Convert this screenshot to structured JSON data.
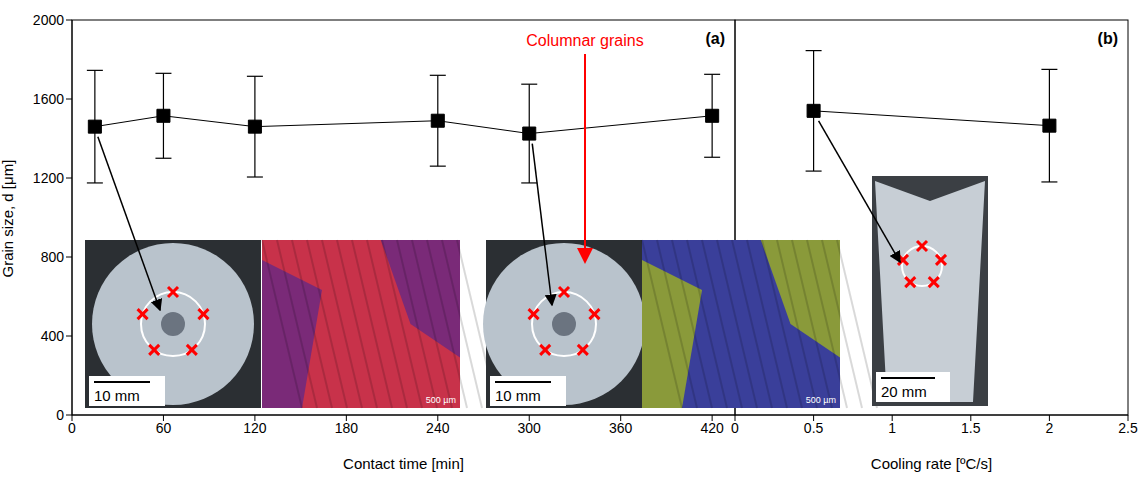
{
  "chart_data": [
    {
      "type": "line",
      "title": "(a)",
      "x_label": "Contact time [min]",
      "y_label": "Grain size, d [μm]",
      "x": [
        15,
        60,
        120,
        240,
        300,
        420
      ],
      "values": [
        1460,
        1515,
        1460,
        1490,
        1425,
        1515
      ],
      "errors": [
        285,
        215,
        255,
        230,
        250,
        210
      ],
      "color": "#000000",
      "marker": "square",
      "xlim": [
        0,
        435
      ],
      "xticks": [
        0,
        60,
        120,
        180,
        240,
        300,
        360,
        420
      ],
      "ylim": [
        0,
        2000
      ],
      "yticks": [
        0,
        400,
        800,
        1200,
        1600,
        2000
      ],
      "grid": false,
      "annotations": [
        {
          "text": "Columnar grains",
          "color": "#ff0000"
        }
      ],
      "inset_labels": [
        "10 mm",
        "500 µm",
        "10 mm",
        "500 µm"
      ]
    },
    {
      "type": "line",
      "title": "(b)",
      "x_label": "Cooling rate [ºC/s]",
      "x": [
        0.5,
        2
      ],
      "values": [
        1540,
        1465
      ],
      "errors": [
        305,
        285
      ],
      "color": "#000000",
      "marker": "square",
      "xlim": [
        0,
        2.5
      ],
      "xticks": [
        0,
        0.5,
        1,
        1.5,
        2,
        2.5
      ],
      "ylim": [
        0,
        2000
      ],
      "yticks": [
        0,
        400,
        800,
        1200,
        1600,
        2000
      ],
      "grid": false,
      "tick_labels": "x",
      "inset_labels": [
        "20 mm"
      ]
    }
  ]
}
